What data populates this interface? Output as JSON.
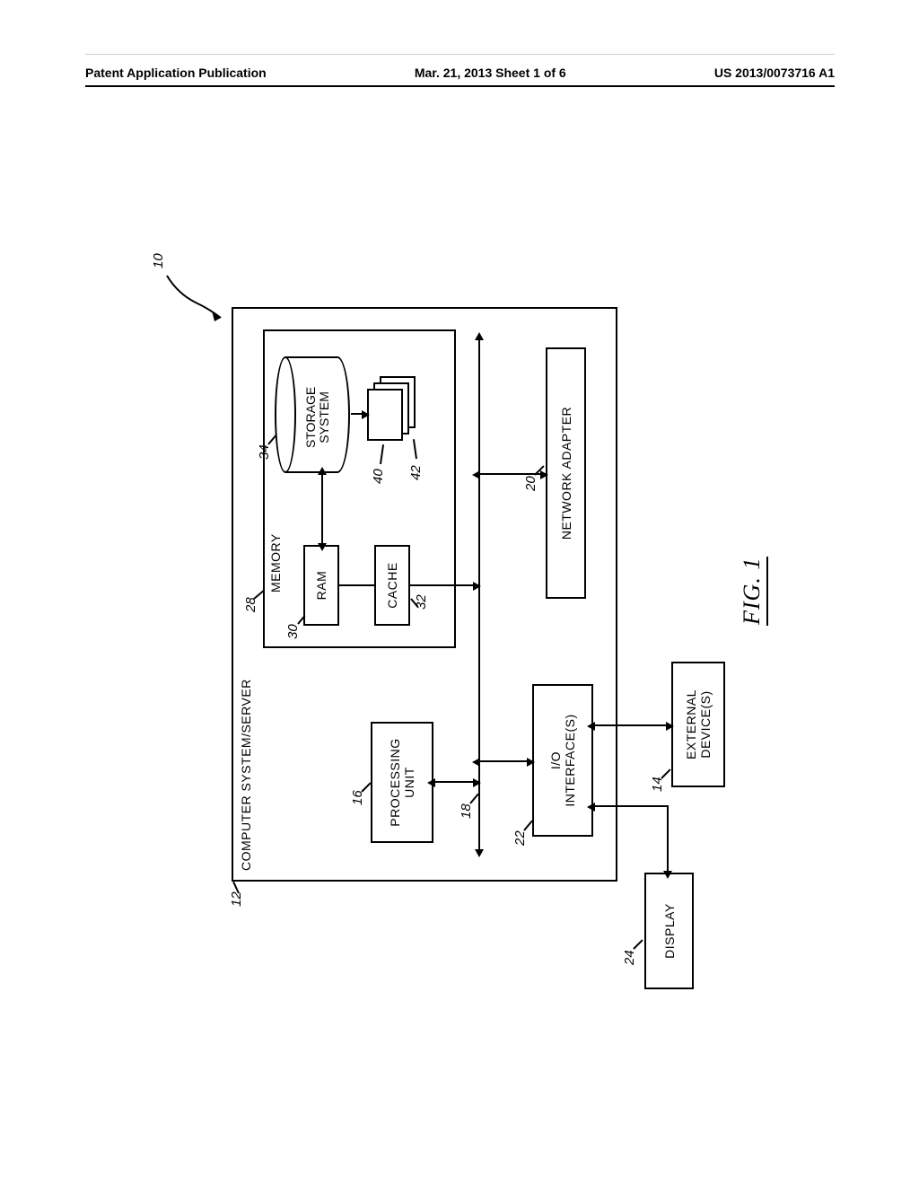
{
  "header": {
    "left": "Patent Application Publication",
    "mid": "Mar. 21, 2013  Sheet 1 of 6",
    "right": "US 2013/0073716 A1"
  },
  "figure": {
    "caption": "FIG. 1",
    "type": "block-diagram",
    "background_color": "#ffffff",
    "stroke_color": "#000000",
    "label_font": "handwritten-italic",
    "blocks": {
      "computer_system": {
        "id": "12",
        "text": "COMPUTER SYSTEM/SERVER"
      },
      "processing_unit": {
        "id": "16",
        "text": "PROCESSING\nUNIT"
      },
      "memory": {
        "id": "28",
        "text": "MEMORY"
      },
      "ram": {
        "id": "30",
        "text": "RAM"
      },
      "cache": {
        "id": "32",
        "text": "CACHE"
      },
      "storage_system": {
        "id": "34",
        "text": "STORAGE\nSYSTEM"
      },
      "storage_media": {
        "id40": "40",
        "id42": "42"
      },
      "bus": {
        "id": "18"
      },
      "io_interfaces": {
        "id": "22",
        "text": "I/O\nINTERFACE(S)"
      },
      "network_adapter": {
        "id": "20",
        "text": "NETWORK ADAPTER"
      },
      "display": {
        "id": "24",
        "text": "DISPLAY"
      },
      "external_devices": {
        "id": "14",
        "text": "EXTERNAL\nDEVICE(S)"
      },
      "system_ref": {
        "id": "10"
      }
    }
  }
}
